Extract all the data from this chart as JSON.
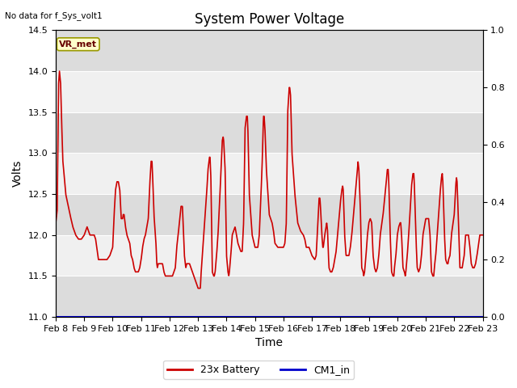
{
  "title": "System Power Voltage",
  "no_data_label": "No data for f_Sys_volt1",
  "xlabel": "Time",
  "ylabel": "Volts",
  "ylim_left": [
    11.0,
    14.5
  ],
  "ylim_right": [
    0.0,
    1.0
  ],
  "yticks_left": [
    11.0,
    11.5,
    12.0,
    12.5,
    13.0,
    13.5,
    14.0,
    14.5
  ],
  "yticks_right": [
    0.0,
    0.2,
    0.4,
    0.6,
    0.8,
    1.0
  ],
  "xtick_labels": [
    "Feb 8",
    "Feb 9",
    "Feb 10",
    "Feb 11",
    "Feb 12",
    "Feb 13",
    "Feb 14",
    "Feb 15",
    "Feb 16",
    "Feb 17",
    "Feb 18",
    "Feb 19",
    "Feb 20",
    "Feb 21",
    "Feb 22",
    "Feb 23"
  ],
  "line_color_battery": "#cc0000",
  "line_color_cm1": "#0000cc",
  "legend_battery": "23x Battery",
  "legend_cm1": "CM1_in",
  "vr_met_label": "VR_met",
  "vr_met_bbox_facecolor": "#ffffcc",
  "vr_met_bbox_edgecolor": "#999900",
  "background_color": "#ffffff",
  "plot_bg_color_light": "#f0f0f0",
  "plot_bg_color_dark": "#dcdcdc",
  "title_fontsize": 12,
  "axis_label_fontsize": 10,
  "tick_fontsize": 8,
  "battery_keypoints": [
    [
      8.0,
      12.15
    ],
    [
      8.05,
      12.3
    ],
    [
      8.1,
      13.85
    ],
    [
      8.13,
      14.0
    ],
    [
      8.17,
      13.85
    ],
    [
      8.2,
      13.45
    ],
    [
      8.25,
      12.9
    ],
    [
      8.35,
      12.5
    ],
    [
      8.5,
      12.25
    ],
    [
      8.6,
      12.1
    ],
    [
      8.7,
      12.0
    ],
    [
      8.8,
      11.95
    ],
    [
      8.9,
      11.95
    ],
    [
      9.0,
      12.0
    ],
    [
      9.05,
      12.05
    ],
    [
      9.1,
      12.1
    ],
    [
      9.15,
      12.05
    ],
    [
      9.2,
      12.0
    ],
    [
      9.25,
      12.0
    ],
    [
      9.3,
      12.0
    ],
    [
      9.35,
      12.0
    ],
    [
      9.4,
      11.95
    ],
    [
      9.5,
      11.7
    ],
    [
      9.6,
      11.7
    ],
    [
      9.7,
      11.7
    ],
    [
      9.8,
      11.7
    ],
    [
      9.9,
      11.75
    ],
    [
      10.0,
      11.85
    ],
    [
      10.05,
      12.25
    ],
    [
      10.1,
      12.55
    ],
    [
      10.15,
      12.65
    ],
    [
      10.2,
      12.65
    ],
    [
      10.25,
      12.55
    ],
    [
      10.3,
      12.2
    ],
    [
      10.35,
      12.2
    ],
    [
      10.37,
      12.25
    ],
    [
      10.4,
      12.25
    ],
    [
      10.45,
      12.1
    ],
    [
      10.5,
      12.0
    ],
    [
      10.55,
      11.95
    ],
    [
      10.6,
      11.9
    ],
    [
      10.65,
      11.75
    ],
    [
      10.7,
      11.7
    ],
    [
      10.75,
      11.6
    ],
    [
      10.8,
      11.55
    ],
    [
      10.85,
      11.55
    ],
    [
      10.9,
      11.55
    ],
    [
      10.95,
      11.6
    ],
    [
      11.0,
      11.7
    ],
    [
      11.05,
      11.85
    ],
    [
      11.1,
      11.95
    ],
    [
      11.15,
      12.0
    ],
    [
      11.2,
      12.1
    ],
    [
      11.25,
      12.2
    ],
    [
      11.3,
      12.6
    ],
    [
      11.35,
      12.9
    ],
    [
      11.38,
      12.9
    ],
    [
      11.4,
      12.75
    ],
    [
      11.45,
      12.25
    ],
    [
      11.5,
      12.0
    ],
    [
      11.52,
      11.9
    ],
    [
      11.55,
      11.65
    ],
    [
      11.57,
      11.6
    ],
    [
      11.6,
      11.65
    ],
    [
      11.62,
      11.65
    ],
    [
      11.65,
      11.65
    ],
    [
      11.7,
      11.65
    ],
    [
      11.75,
      11.65
    ],
    [
      11.8,
      11.55
    ],
    [
      11.85,
      11.5
    ],
    [
      11.9,
      11.5
    ],
    [
      11.95,
      11.5
    ],
    [
      12.0,
      11.5
    ],
    [
      12.05,
      11.5
    ],
    [
      12.1,
      11.5
    ],
    [
      12.15,
      11.55
    ],
    [
      12.2,
      11.6
    ],
    [
      12.25,
      11.85
    ],
    [
      12.3,
      12.0
    ],
    [
      12.4,
      12.35
    ],
    [
      12.45,
      12.35
    ],
    [
      12.5,
      11.95
    ],
    [
      12.52,
      11.75
    ],
    [
      12.55,
      11.65
    ],
    [
      12.57,
      11.6
    ],
    [
      12.6,
      11.65
    ],
    [
      12.62,
      11.65
    ],
    [
      12.65,
      11.65
    ],
    [
      12.7,
      11.65
    ],
    [
      12.75,
      11.6
    ],
    [
      12.8,
      11.55
    ],
    [
      12.85,
      11.5
    ],
    [
      12.9,
      11.45
    ],
    [
      12.95,
      11.4
    ],
    [
      13.0,
      11.35
    ],
    [
      13.05,
      11.35
    ],
    [
      13.08,
      11.35
    ],
    [
      13.1,
      11.5
    ],
    [
      13.15,
      11.75
    ],
    [
      13.2,
      12.0
    ],
    [
      13.3,
      12.5
    ],
    [
      13.35,
      12.8
    ],
    [
      13.4,
      12.95
    ],
    [
      13.42,
      12.95
    ],
    [
      13.45,
      12.7
    ],
    [
      13.5,
      11.55
    ],
    [
      13.55,
      11.5
    ],
    [
      13.57,
      11.5
    ],
    [
      13.6,
      11.55
    ],
    [
      13.65,
      11.75
    ],
    [
      13.7,
      12.0
    ],
    [
      13.75,
      12.35
    ],
    [
      13.8,
      12.75
    ],
    [
      13.85,
      13.15
    ],
    [
      13.88,
      13.2
    ],
    [
      13.9,
      13.15
    ],
    [
      13.95,
      12.8
    ],
    [
      14.0,
      11.75
    ],
    [
      14.05,
      11.55
    ],
    [
      14.08,
      11.5
    ],
    [
      14.1,
      11.55
    ],
    [
      14.15,
      11.75
    ],
    [
      14.2,
      12.0
    ],
    [
      14.3,
      12.1
    ],
    [
      14.4,
      11.9
    ],
    [
      14.5,
      11.8
    ],
    [
      14.55,
      11.8
    ],
    [
      14.6,
      12.15
    ],
    [
      14.65,
      13.3
    ],
    [
      14.7,
      13.45
    ],
    [
      14.73,
      13.45
    ],
    [
      14.75,
      13.3
    ],
    [
      14.8,
      12.5
    ],
    [
      14.9,
      12.0
    ],
    [
      15.0,
      11.85
    ],
    [
      15.05,
      11.85
    ],
    [
      15.1,
      11.85
    ],
    [
      15.15,
      12.0
    ],
    [
      15.2,
      12.4
    ],
    [
      15.25,
      12.85
    ],
    [
      15.28,
      13.25
    ],
    [
      15.3,
      13.45
    ],
    [
      15.32,
      13.45
    ],
    [
      15.35,
      13.3
    ],
    [
      15.4,
      12.8
    ],
    [
      15.5,
      12.25
    ],
    [
      15.6,
      12.15
    ],
    [
      15.65,
      12.05
    ],
    [
      15.7,
      11.9
    ],
    [
      15.8,
      11.85
    ],
    [
      15.9,
      11.85
    ],
    [
      16.0,
      11.85
    ],
    [
      16.05,
      11.9
    ],
    [
      16.1,
      12.15
    ],
    [
      16.15,
      13.5
    ],
    [
      16.2,
      13.8
    ],
    [
      16.22,
      13.8
    ],
    [
      16.25,
      13.7
    ],
    [
      16.3,
      13.0
    ],
    [
      16.4,
      12.5
    ],
    [
      16.5,
      12.15
    ],
    [
      16.6,
      12.05
    ],
    [
      16.7,
      12.0
    ],
    [
      16.75,
      11.95
    ],
    [
      16.8,
      11.85
    ],
    [
      16.9,
      11.85
    ],
    [
      17.0,
      11.75
    ],
    [
      17.1,
      11.7
    ],
    [
      17.15,
      11.75
    ],
    [
      17.2,
      12.1
    ],
    [
      17.25,
      12.45
    ],
    [
      17.28,
      12.45
    ],
    [
      17.3,
      12.35
    ],
    [
      17.35,
      12.0
    ],
    [
      17.38,
      11.85
    ],
    [
      17.4,
      11.85
    ],
    [
      17.45,
      12.0
    ],
    [
      17.5,
      12.1
    ],
    [
      17.52,
      12.15
    ],
    [
      17.55,
      12.05
    ],
    [
      17.58,
      11.75
    ],
    [
      17.6,
      11.6
    ],
    [
      17.65,
      11.55
    ],
    [
      17.7,
      11.55
    ],
    [
      17.75,
      11.6
    ],
    [
      17.8,
      11.7
    ],
    [
      17.85,
      11.8
    ],
    [
      17.9,
      12.0
    ],
    [
      18.0,
      12.4
    ],
    [
      18.05,
      12.55
    ],
    [
      18.08,
      12.6
    ],
    [
      18.1,
      12.55
    ],
    [
      18.15,
      12.0
    ],
    [
      18.2,
      11.75
    ],
    [
      18.25,
      11.75
    ],
    [
      18.3,
      11.75
    ],
    [
      18.35,
      11.85
    ],
    [
      18.4,
      12.0
    ],
    [
      18.45,
      12.2
    ],
    [
      18.5,
      12.4
    ],
    [
      18.55,
      12.6
    ],
    [
      18.6,
      12.8
    ],
    [
      18.62,
      12.9
    ],
    [
      18.65,
      12.8
    ],
    [
      18.7,
      12.35
    ],
    [
      18.75,
      11.6
    ],
    [
      18.8,
      11.55
    ],
    [
      18.82,
      11.5
    ],
    [
      18.85,
      11.55
    ],
    [
      18.9,
      11.75
    ],
    [
      18.95,
      12.0
    ],
    [
      19.0,
      12.15
    ],
    [
      19.05,
      12.2
    ],
    [
      19.1,
      12.15
    ],
    [
      19.12,
      12.0
    ],
    [
      19.15,
      11.75
    ],
    [
      19.2,
      11.6
    ],
    [
      19.25,
      11.55
    ],
    [
      19.3,
      11.6
    ],
    [
      19.35,
      11.75
    ],
    [
      19.4,
      12.0
    ],
    [
      19.5,
      12.25
    ],
    [
      19.6,
      12.6
    ],
    [
      19.65,
      12.8
    ],
    [
      19.68,
      12.8
    ],
    [
      19.7,
      12.65
    ],
    [
      19.75,
      12.0
    ],
    [
      19.8,
      11.55
    ],
    [
      19.85,
      11.5
    ],
    [
      19.88,
      11.5
    ],
    [
      19.9,
      11.6
    ],
    [
      19.95,
      11.75
    ],
    [
      20.0,
      12.0
    ],
    [
      20.05,
      12.1
    ],
    [
      20.1,
      12.15
    ],
    [
      20.12,
      12.15
    ],
    [
      20.15,
      12.0
    ],
    [
      20.2,
      11.6
    ],
    [
      20.25,
      11.55
    ],
    [
      20.28,
      11.5
    ],
    [
      20.3,
      11.55
    ],
    [
      20.35,
      11.75
    ],
    [
      20.4,
      12.0
    ],
    [
      20.5,
      12.6
    ],
    [
      20.55,
      12.75
    ],
    [
      20.58,
      12.75
    ],
    [
      20.6,
      12.6
    ],
    [
      20.65,
      12.0
    ],
    [
      20.7,
      11.6
    ],
    [
      20.75,
      11.55
    ],
    [
      20.8,
      11.6
    ],
    [
      20.85,
      11.75
    ],
    [
      20.9,
      12.0
    ],
    [
      21.0,
      12.2
    ],
    [
      21.05,
      12.2
    ],
    [
      21.1,
      12.2
    ],
    [
      21.15,
      12.0
    ],
    [
      21.2,
      11.55
    ],
    [
      21.25,
      11.5
    ],
    [
      21.28,
      11.5
    ],
    [
      21.3,
      11.6
    ],
    [
      21.35,
      11.75
    ],
    [
      21.4,
      12.0
    ],
    [
      21.5,
      12.5
    ],
    [
      21.55,
      12.7
    ],
    [
      21.58,
      12.75
    ],
    [
      21.6,
      12.65
    ],
    [
      21.65,
      12.05
    ],
    [
      21.7,
      11.7
    ],
    [
      21.75,
      11.65
    ],
    [
      21.78,
      11.65
    ],
    [
      21.8,
      11.7
    ],
    [
      21.85,
      11.75
    ],
    [
      21.9,
      12.0
    ],
    [
      22.0,
      12.25
    ],
    [
      22.05,
      12.6
    ],
    [
      22.08,
      12.7
    ],
    [
      22.1,
      12.65
    ],
    [
      22.15,
      12.15
    ],
    [
      22.2,
      11.6
    ],
    [
      22.25,
      11.6
    ],
    [
      22.28,
      11.6
    ],
    [
      22.3,
      11.65
    ],
    [
      22.35,
      11.75
    ],
    [
      22.4,
      12.0
    ],
    [
      22.5,
      12.0
    ],
    [
      22.55,
      11.85
    ],
    [
      22.6,
      11.65
    ],
    [
      22.65,
      11.6
    ],
    [
      22.7,
      11.6
    ],
    [
      22.75,
      11.65
    ],
    [
      22.8,
      11.75
    ],
    [
      22.9,
      12.0
    ],
    [
      22.95,
      12.0
    ],
    [
      23.0,
      12.0
    ]
  ]
}
